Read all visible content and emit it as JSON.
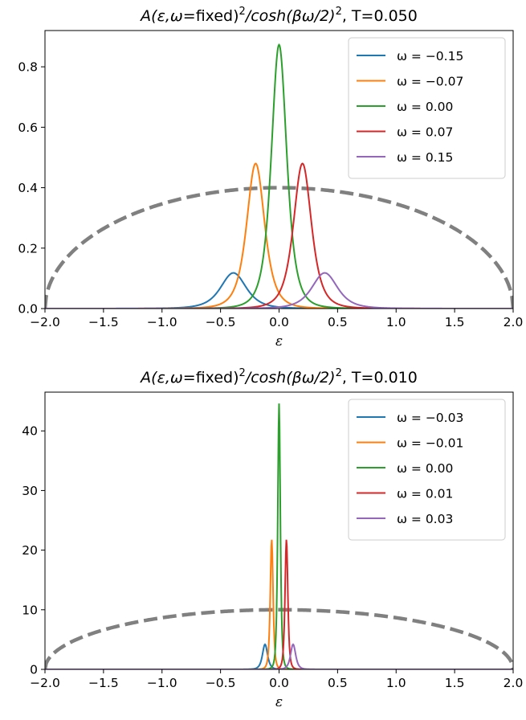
{
  "chart_data": [
    {
      "type": "line",
      "title_math": "A(ε,ω",
      "title_fixed": "=fixed)",
      "title_sup1": "2",
      "title_mid": "/cosh(βω/2)",
      "title_sup2": "2",
      "title_tail": ", T=0.050",
      "xlabel": "ε",
      "xlim": [
        -2.0,
        2.0
      ],
      "ylim": [
        0,
        0.92
      ],
      "xticks": [
        "−2.0",
        "−1.5",
        "−1.0",
        "−0.5",
        "0.0",
        "0.5",
        "1.0",
        "1.5",
        "2.0"
      ],
      "xtick_values": [
        -2.0,
        -1.5,
        -1.0,
        -0.5,
        0.0,
        0.5,
        1.0,
        1.5,
        2.0
      ],
      "yticks": [
        "0.0",
        "0.2",
        "0.4",
        "0.6",
        "0.8"
      ],
      "ytick_values": [
        0.0,
        0.2,
        0.4,
        0.6,
        0.8
      ],
      "legend_position": "top-right",
      "series": [
        {
          "name": "ω = −0.15",
          "color": "#1f77b4",
          "omega": -0.15,
          "peak_x": -0.39,
          "peak_y": 0.118,
          "width": 0.2
        },
        {
          "name": "ω = −0.07",
          "color": "#ff7f0e",
          "omega": -0.07,
          "peak_x": -0.2,
          "peak_y": 0.48,
          "width": 0.14
        },
        {
          "name": "ω = 0.00",
          "color": "#2ca02c",
          "omega": 0.0,
          "peak_x": 0.0,
          "peak_y": 0.873,
          "width": 0.12
        },
        {
          "name": "ω = 0.07",
          "color": "#d62728",
          "omega": 0.07,
          "peak_x": 0.2,
          "peak_y": 0.48,
          "width": 0.14
        },
        {
          "name": "ω = 0.15",
          "color": "#9467bd",
          "omega": 0.15,
          "peak_x": 0.39,
          "peak_y": 0.118,
          "width": 0.2
        }
      ],
      "dashed_curve": {
        "color": "#808080",
        "type": "semicircle",
        "radius": 2.0,
        "height": 0.4
      }
    },
    {
      "type": "line",
      "title_math": "A(ε,ω",
      "title_fixed": "=fixed)",
      "title_sup1": "2",
      "title_mid": "/cosh(βω/2)",
      "title_sup2": "2",
      "title_tail": ", T=0.010",
      "xlabel": "ε",
      "xlim": [
        -2.0,
        2.0
      ],
      "ylim": [
        0,
        46.5
      ],
      "xticks": [
        "−2.0",
        "−1.5",
        "−1.0",
        "−0.5",
        "0.0",
        "0.5",
        "1.0",
        "1.5",
        "2.0"
      ],
      "xtick_values": [
        -2.0,
        -1.5,
        -1.0,
        -0.5,
        0.0,
        0.5,
        1.0,
        1.5,
        2.0
      ],
      "yticks": [
        "0",
        "10",
        "20",
        "30",
        "40"
      ],
      "ytick_values": [
        0,
        10,
        20,
        30,
        40
      ],
      "legend_position": "top-right",
      "series": [
        {
          "name": "ω = −0.03",
          "color": "#1f77b4",
          "omega": -0.03,
          "peak_x": -0.12,
          "peak_y": 4.2,
          "width": 0.04
        },
        {
          "name": "ω = −0.01",
          "color": "#ff7f0e",
          "omega": -0.01,
          "peak_x": -0.063,
          "peak_y": 21.8,
          "width": 0.022
        },
        {
          "name": "ω = 0.00",
          "color": "#2ca02c",
          "omega": 0.0,
          "peak_x": 0.0,
          "peak_y": 44.6,
          "width": 0.02
        },
        {
          "name": "ω = 0.01",
          "color": "#d62728",
          "omega": 0.01,
          "peak_x": 0.063,
          "peak_y": 21.8,
          "width": 0.022
        },
        {
          "name": "ω = 0.03",
          "color": "#9467bd",
          "omega": 0.03,
          "peak_x": 0.12,
          "peak_y": 4.2,
          "width": 0.04
        }
      ],
      "dashed_curve": {
        "color": "#808080",
        "type": "semicircle",
        "radius": 2.0,
        "height": 10.0
      }
    }
  ]
}
